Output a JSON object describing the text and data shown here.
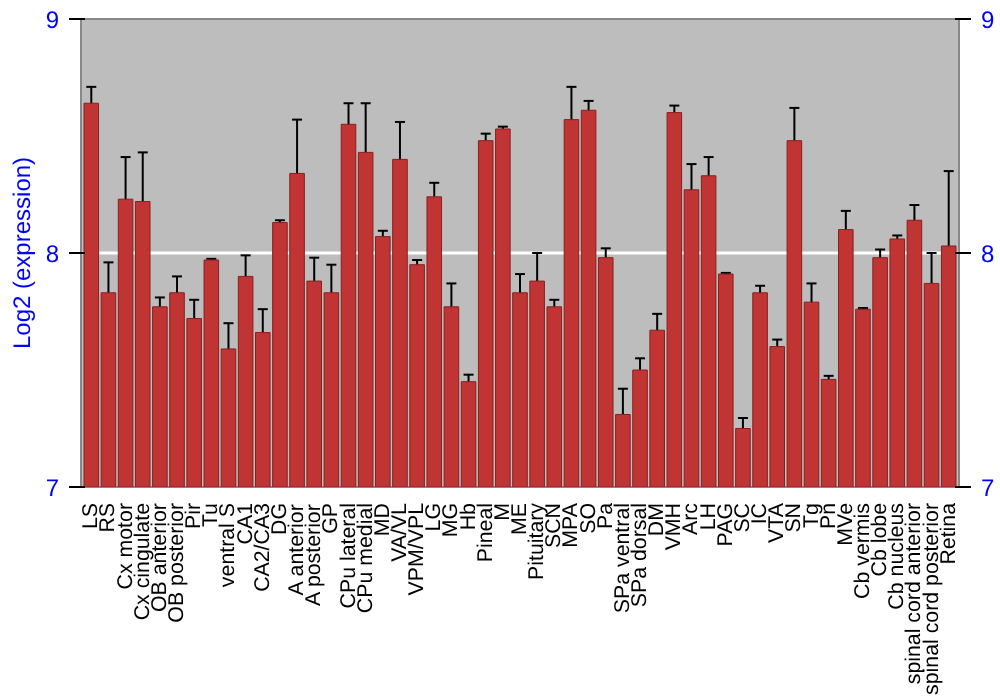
{
  "chart_data": {
    "type": "bar",
    "ylabel": "Log2 (expression)",
    "categories": [
      "LS",
      "RS",
      "Cx motor",
      "Cx cingulate",
      "OB anterior",
      "OB posterior",
      "Pir",
      "Tu",
      "ventral S",
      "CA1",
      "CA2/CA3",
      "DG",
      "A anterior",
      "A posterior",
      "GP",
      "CPu lateral",
      "CPu medial",
      "MD",
      "VA/VL",
      "VPM/VPL",
      "LG",
      "MG",
      "Hb",
      "Pineal",
      "M",
      "ME",
      "Pituitary",
      "SCN",
      "MPA",
      "SO",
      "Pa",
      "SPa ventral",
      "SPa dorsal",
      "DM",
      "VMH",
      "Arc",
      "LH",
      "PAG",
      "SC",
      "IC",
      "VTA",
      "SN",
      "Tg",
      "Pn",
      "MVe",
      "Cb vermis",
      "Cb lobe",
      "Cb nucleus",
      "spinal cord anterior",
      "spinal cord posterior",
      "Retina"
    ],
    "values": [
      8.64,
      7.83,
      8.23,
      8.22,
      7.77,
      7.83,
      7.72,
      7.97,
      7.59,
      7.9,
      7.66,
      8.13,
      8.34,
      7.88,
      7.83,
      8.55,
      8.43,
      8.07,
      8.4,
      7.95,
      8.24,
      7.77,
      7.45,
      8.48,
      8.53,
      7.83,
      7.88,
      7.77,
      8.57,
      8.61,
      7.98,
      7.31,
      7.5,
      7.67,
      8.6,
      8.27,
      8.33,
      7.91,
      7.25,
      7.83,
      7.6,
      8.48,
      7.79,
      7.46,
      8.1,
      7.76,
      7.98,
      8.06,
      8.14,
      7.87,
      8.03
    ],
    "errors": [
      0.07,
      0.13,
      0.18,
      0.21,
      0.04,
      0.07,
      0.08,
      0.005,
      0.11,
      0.09,
      0.1,
      0.01,
      0.23,
      0.1,
      0.12,
      0.09,
      0.21,
      0.025,
      0.16,
      0.02,
      0.06,
      0.1,
      0.03,
      0.03,
      0.01,
      0.08,
      0.12,
      0.03,
      0.14,
      0.04,
      0.04,
      0.11,
      0.05,
      0.07,
      0.03,
      0.11,
      0.08,
      0.005,
      0.045,
      0.03,
      0.03,
      0.14,
      0.08,
      0.015,
      0.08,
      0.005,
      0.035,
      0.015,
      0.065,
      0.13,
      0.32
    ],
    "color": "#c03434",
    "ylim": [
      7,
      9
    ],
    "yticks": [
      7,
      8,
      9
    ],
    "y2lim": [
      7,
      9
    ],
    "y2ticks": [
      7,
      8,
      9
    ],
    "grid": "y"
  }
}
